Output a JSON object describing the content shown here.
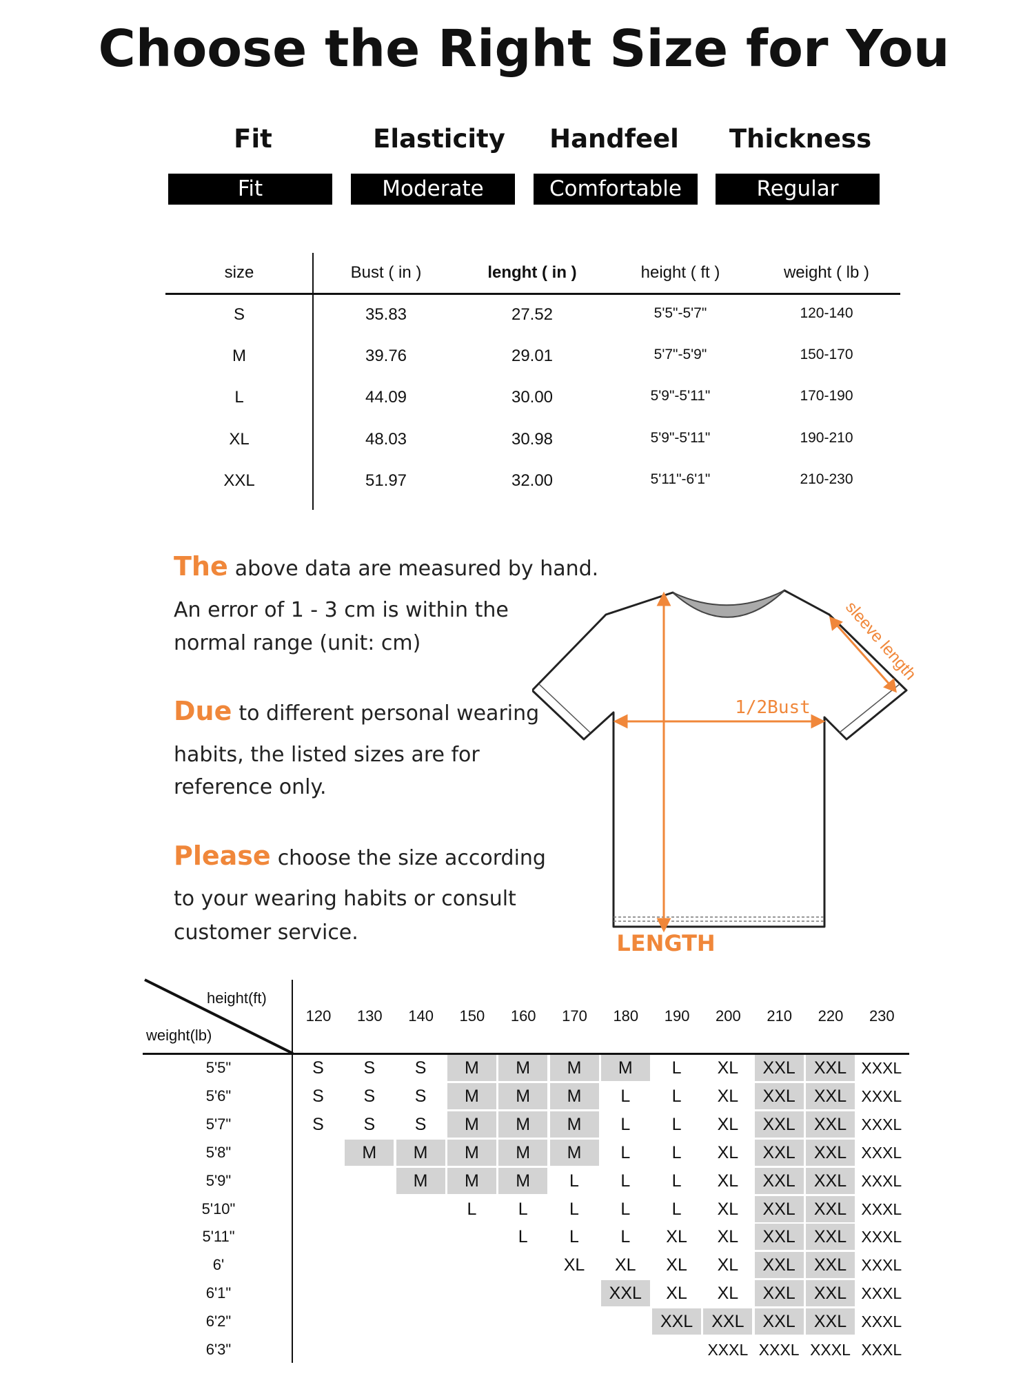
{
  "title": "Choose the Right Size for You",
  "attributes": [
    {
      "label": "Fit",
      "value": "Fit"
    },
    {
      "label": "Elasticity",
      "value": "Moderate"
    },
    {
      "label": "Handfeel",
      "value": "Comfortable"
    },
    {
      "label": "Thickness",
      "value": "Regular"
    }
  ],
  "size_table": {
    "headers": [
      "size",
      "Bust ( in )",
      "lenght ( in )",
      "height ( ft )",
      "weight ( lb )"
    ],
    "rows": [
      [
        "S",
        "35.83",
        "27.52",
        "5'5\"-5'7\"",
        "120-140"
      ],
      [
        "M",
        "39.76",
        "29.01",
        "5'7\"-5'9\"",
        "150-170"
      ],
      [
        "L",
        "44.09",
        "30.00",
        "5'9\"-5'11\"",
        "170-190"
      ],
      [
        "XL",
        "48.03",
        "30.98",
        "5'9\"-5'11\"",
        "190-210"
      ],
      [
        "XXL",
        "51.97",
        "32.00",
        "5'11\"-6'1\"",
        "210-230"
      ]
    ]
  },
  "notes": [
    {
      "highlight": "The",
      "lines": [
        "above data are measured by hand.",
        "An error of 1 - 3 cm is within the",
        "normal range (unit: cm)"
      ]
    },
    {
      "highlight": "Due",
      "lines": [
        "to different personal wearing",
        "habits, the listed sizes are for",
        "reference only."
      ]
    },
    {
      "highlight": "Please",
      "lines": [
        "choose the size according",
        "to your wearing habits or consult",
        "customer service."
      ]
    }
  ],
  "diagram": {
    "bust_label": "1/2Bust",
    "sleeve_label": "sleeve length",
    "length_label": "LENGTH"
  },
  "colors": {
    "accent": "#f0873a",
    "shade": "#d3d3d3"
  },
  "grid": {
    "corner_top": "height(ft)",
    "corner_bottom": "weight(lb)",
    "columns": [
      "120",
      "130",
      "140",
      "150",
      "160",
      "170",
      "180",
      "190",
      "200",
      "210",
      "220",
      "230"
    ],
    "rows": [
      {
        "label": "5'5\"",
        "cells": [
          "S",
          "S",
          "S",
          "M",
          "M",
          "M",
          "M",
          "L",
          "XL",
          "XXL",
          "XXL",
          "XXXL"
        ]
      },
      {
        "label": "5'6\"",
        "cells": [
          "S",
          "S",
          "S",
          "M",
          "M",
          "M",
          "L",
          "L",
          "XL",
          "XXL",
          "XXL",
          "XXXL"
        ]
      },
      {
        "label": "5'7\"",
        "cells": [
          "S",
          "S",
          "S",
          "M",
          "M",
          "M",
          "L",
          "L",
          "XL",
          "XXL",
          "XXL",
          "XXXL"
        ]
      },
      {
        "label": "5'8\"",
        "cells": [
          "",
          "M",
          "M",
          "M",
          "M",
          "M",
          "L",
          "L",
          "XL",
          "XXL",
          "XXL",
          "XXXL"
        ]
      },
      {
        "label": "5'9\"",
        "cells": [
          "",
          "",
          "M",
          "M",
          "M",
          "L",
          "L",
          "L",
          "XL",
          "XXL",
          "XXL",
          "XXXL"
        ]
      },
      {
        "label": "5'10\"",
        "cells": [
          "",
          "",
          "",
          "L",
          "L",
          "L",
          "L",
          "L",
          "XL",
          "XXL",
          "XXL",
          "XXXL"
        ]
      },
      {
        "label": "5'11\"",
        "cells": [
          "",
          "",
          "",
          "",
          "L",
          "L",
          "L",
          "XL",
          "XL",
          "XXL",
          "XXL",
          "XXXL"
        ]
      },
      {
        "label": "6'",
        "cells": [
          "",
          "",
          "",
          "",
          "",
          "XL",
          "XL",
          "XL",
          "XL",
          "XXL",
          "XXL",
          "XXXL"
        ]
      },
      {
        "label": "6'1\"",
        "cells": [
          "",
          "",
          "",
          "",
          "",
          "",
          "XXL",
          "XL",
          "XL",
          "XXL",
          "XXL",
          "XXXL"
        ]
      },
      {
        "label": "6'2\"",
        "cells": [
          "",
          "",
          "",
          "",
          "",
          "",
          "",
          "XXL",
          "XXL",
          "XXL",
          "XXL",
          "XXXL"
        ]
      },
      {
        "label": "6'3\"",
        "cells": [
          "",
          "",
          "",
          "",
          "",
          "",
          "",
          "",
          "XXXL",
          "XXXL",
          "XXXL",
          "XXXL"
        ]
      }
    ],
    "shaded_sizes": [
      "M",
      "XXL"
    ]
  }
}
